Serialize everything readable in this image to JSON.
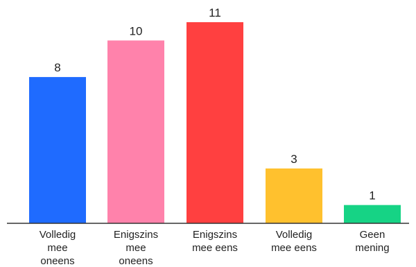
{
  "chart_data": {
    "type": "bar",
    "categories": [
      [
        "Volledig",
        "mee",
        "oneens"
      ],
      [
        "Enigszins",
        "mee",
        "oneens"
      ],
      [
        "Enigszins",
        "mee eens"
      ],
      [
        "Volledig",
        "mee eens"
      ],
      [
        "Geen",
        "mening"
      ]
    ],
    "values": [
      8,
      10,
      11,
      3,
      1
    ],
    "colors": [
      "#1f6bff",
      "#ff82ab",
      "#ff4040",
      "#ffc12e",
      "#16d385"
    ],
    "ylim": [
      0,
      11
    ],
    "grid": false,
    "legend": "none",
    "title": "",
    "xlabel": "",
    "ylabel": "",
    "data_labels": true
  }
}
